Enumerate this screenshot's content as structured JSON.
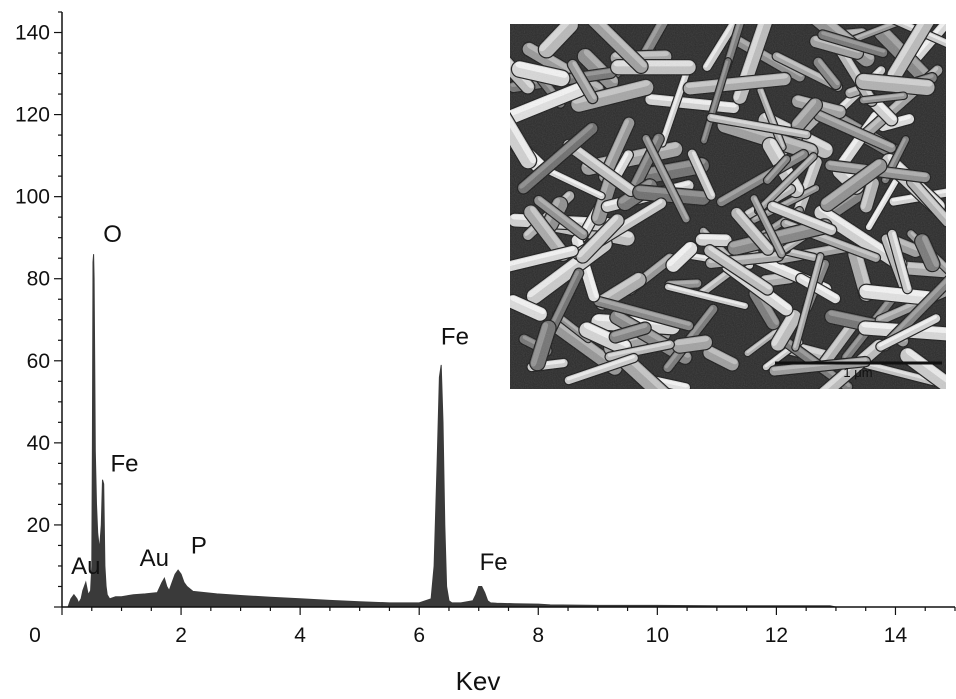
{
  "chart_data": {
    "type": "area",
    "title": "",
    "xlabel": "Kev",
    "ylabel": "",
    "xlim": [
      0,
      15
    ],
    "ylim": [
      0,
      145
    ],
    "x_ticks": [
      0,
      2,
      4,
      6,
      8,
      10,
      12,
      14
    ],
    "y_ticks": [
      20,
      40,
      60,
      80,
      100,
      120,
      140
    ],
    "x_tick_labels": [
      "2",
      "4",
      "6",
      "8",
      "10",
      "12",
      "14"
    ],
    "y_tick_labels": [
      "20",
      "40",
      "60",
      "80",
      "100",
      "120",
      "140"
    ],
    "origin_label": "0",
    "grid": false,
    "legend": "none",
    "fill_color": "#3a3a3a",
    "series": [
      {
        "x": [
          0.1,
          0.15,
          0.2,
          0.25,
          0.28,
          0.32,
          0.35,
          0.4,
          0.44,
          0.48,
          0.5,
          0.51,
          0.52,
          0.53,
          0.54,
          0.55,
          0.56,
          0.58,
          0.6,
          0.63,
          0.66,
          0.68,
          0.7,
          0.71,
          0.72,
          0.74,
          0.76,
          0.8,
          0.9,
          1.0,
          1.2,
          1.4,
          1.6,
          1.68,
          1.72,
          1.76,
          1.8,
          1.85,
          1.9,
          1.95,
          2.0,
          2.05,
          2.1,
          2.2,
          2.4,
          2.6,
          3.0,
          3.5,
          4.0,
          4.5,
          5.0,
          5.5,
          6.0,
          6.2,
          6.25,
          6.3,
          6.34,
          6.37,
          6.4,
          6.43,
          6.46,
          6.5,
          6.55,
          6.7,
          6.9,
          6.95,
          7.0,
          7.05,
          7.1,
          7.15,
          7.2,
          7.3,
          7.6,
          8.0,
          8.2,
          9.0,
          10.0,
          11.0,
          12.0,
          12.9,
          13.0,
          14.0,
          15.0
        ],
        "y": [
          0,
          2,
          3,
          2,
          1,
          2,
          4,
          6,
          3,
          4,
          10,
          40,
          84,
          86,
          80,
          60,
          38,
          25,
          18,
          14,
          20,
          31,
          30,
          20,
          10,
          5,
          3,
          2,
          2.5,
          2.5,
          3,
          3.2,
          3.5,
          6,
          7,
          5,
          4,
          6,
          8,
          9,
          8,
          6,
          5,
          3.8,
          3.5,
          3.2,
          2.8,
          2.4,
          2.0,
          1.6,
          1.3,
          1.0,
          1.0,
          2,
          10,
          35,
          56,
          59,
          45,
          20,
          5,
          1.5,
          1,
          1,
          1.5,
          3,
          5,
          5,
          3.5,
          1.5,
          1,
          0.9,
          0.8,
          0.7,
          0.5,
          0.4,
          0.4,
          0.3,
          0.3,
          0.3,
          0,
          0,
          0
        ]
      }
    ],
    "annotations": [
      {
        "text": "O",
        "x": 0.85,
        "y": 89
      },
      {
        "text": "Fe",
        "x": 1.05,
        "y": 33
      },
      {
        "text": "Au",
        "x": 0.4,
        "y": 8
      },
      {
        "text": "Au",
        "x": 1.55,
        "y": 10
      },
      {
        "text": "P",
        "x": 2.3,
        "y": 13
      },
      {
        "text": "Fe",
        "x": 6.6,
        "y": 64
      },
      {
        "text": "Fe",
        "x": 7.25,
        "y": 9
      }
    ],
    "inset": {
      "description_icon": "sem-micrograph",
      "scale_bar_label": "1 μm"
    }
  }
}
